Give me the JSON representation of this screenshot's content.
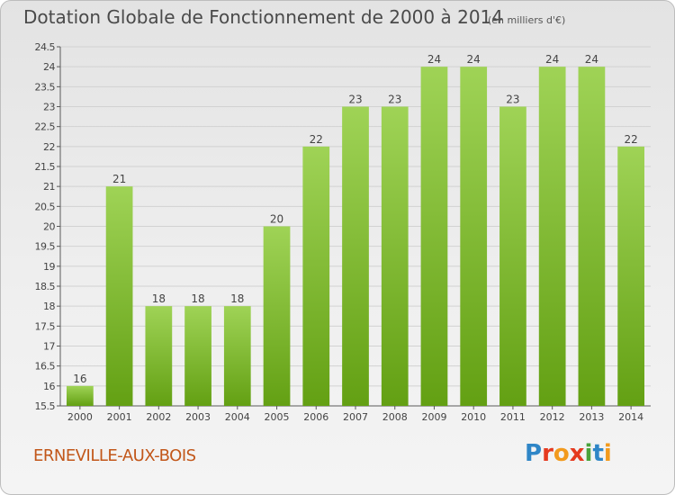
{
  "title": "Dotation Globale de Fonctionnement de 2000 à 2014",
  "subtitle": "(en milliers d'€)",
  "commune": "ERNEVILLE-AUX-BOIS",
  "brand": {
    "letters": [
      "P",
      "r",
      "o",
      "x",
      "i",
      "t",
      "i"
    ],
    "colors": [
      "#2f86c7",
      "#e53a1f",
      "#f29a1d",
      "#e53a1f",
      "#4aa33b",
      "#2f86c7",
      "#f29a1d"
    ]
  },
  "colors": {
    "bar_light": "#9fd356",
    "bar_dark": "#63a013",
    "grid": "#d2d2d2",
    "axis": "#5a5a5a",
    "text": "#444444"
  },
  "chart_data": {
    "type": "bar",
    "categories": [
      "2000",
      "2001",
      "2002",
      "2003",
      "2004",
      "2005",
      "2006",
      "2007",
      "2008",
      "2009",
      "2010",
      "2011",
      "2012",
      "2013",
      "2014"
    ],
    "values": [
      16,
      21,
      18,
      18,
      18,
      20,
      22,
      23,
      23,
      24,
      24,
      23,
      24,
      24,
      22
    ],
    "data_labels": [
      "16",
      "21",
      "18",
      "18",
      "18",
      "20",
      "22",
      "23",
      "23",
      "24",
      "24",
      "23",
      "24",
      "24",
      "22"
    ],
    "ylim": [
      15.5,
      24.5
    ],
    "yticks": [
      "15.5",
      "16",
      "16.5",
      "17",
      "17.5",
      "18",
      "18.5",
      "19",
      "19.5",
      "20",
      "20.5",
      "21",
      "21.5",
      "22",
      "22.5",
      "23",
      "23.5",
      "24",
      "24.5"
    ],
    "grid": true,
    "legend": "none",
    "xlabel": "",
    "ylabel": ""
  }
}
